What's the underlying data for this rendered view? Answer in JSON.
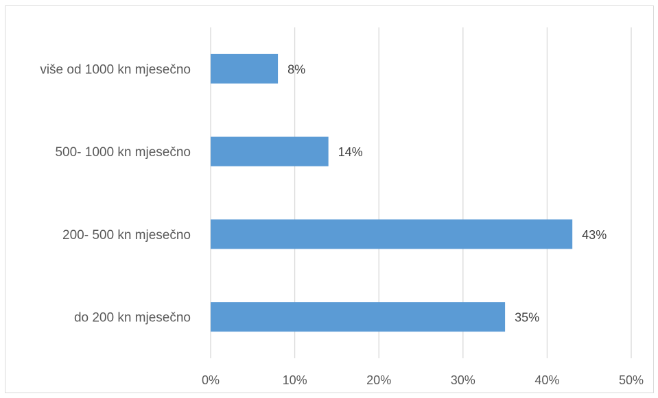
{
  "chart_data": {
    "type": "bar",
    "orientation": "horizontal",
    "categories": [
      "do 200 kn mjesečno",
      "200- 500 kn mjesečno",
      "500- 1000 kn mjesečno",
      "više od 1000 kn mjesečno"
    ],
    "values": [
      35,
      43,
      14,
      8
    ],
    "data_labels": [
      "35%",
      "43%",
      "14%",
      "8%"
    ],
    "xlim": [
      0,
      50
    ],
    "x_ticks": [
      0,
      10,
      20,
      30,
      40,
      50
    ],
    "x_tick_labels": [
      "0%",
      "10%",
      "20%",
      "30%",
      "40%",
      "50%"
    ],
    "grid": "vertical",
    "legend": "none",
    "bar_color": "#5b9bd5",
    "grid_color": "#d9d9d9"
  }
}
